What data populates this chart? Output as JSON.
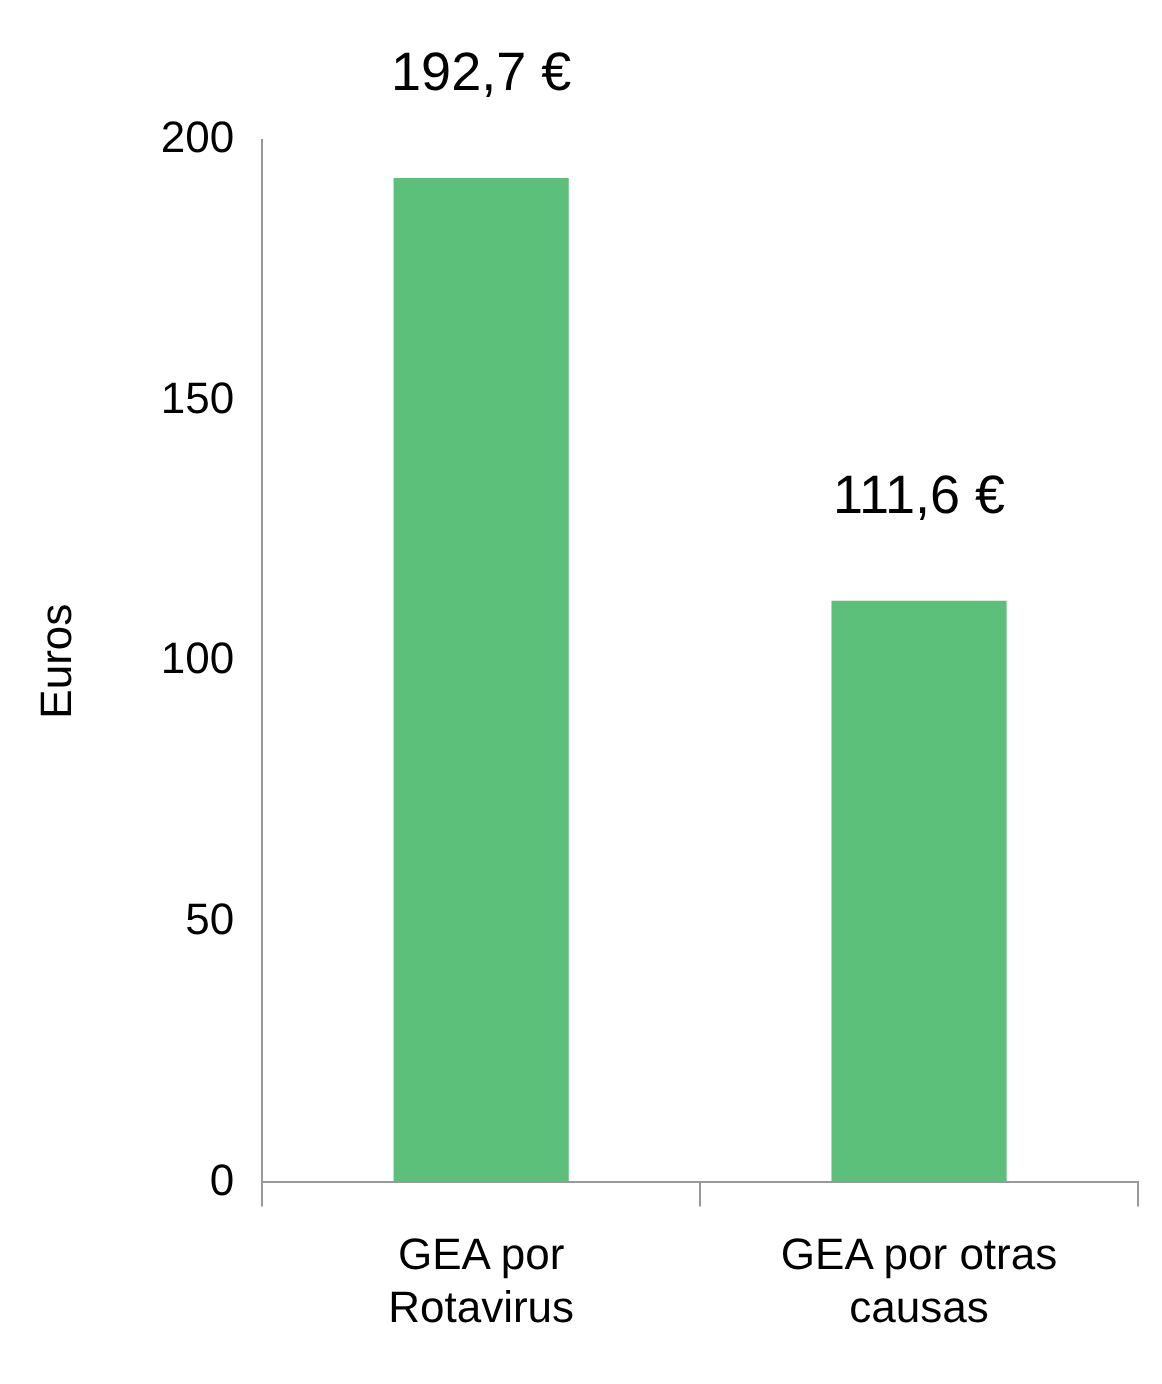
{
  "chart_data": {
    "type": "bar",
    "ylabel": "Euros",
    "categories": [
      "GEA por Rotavirus",
      "GEA por otras causas"
    ],
    "values": [
      192.7,
      111.6
    ],
    "value_labels": [
      "192,7 €",
      "111,6 €"
    ],
    "color": "#5cbf7a",
    "ylim": [
      0,
      200
    ],
    "yticks": [
      0,
      50,
      100,
      150,
      200
    ],
    "grid": false,
    "legend": false
  }
}
